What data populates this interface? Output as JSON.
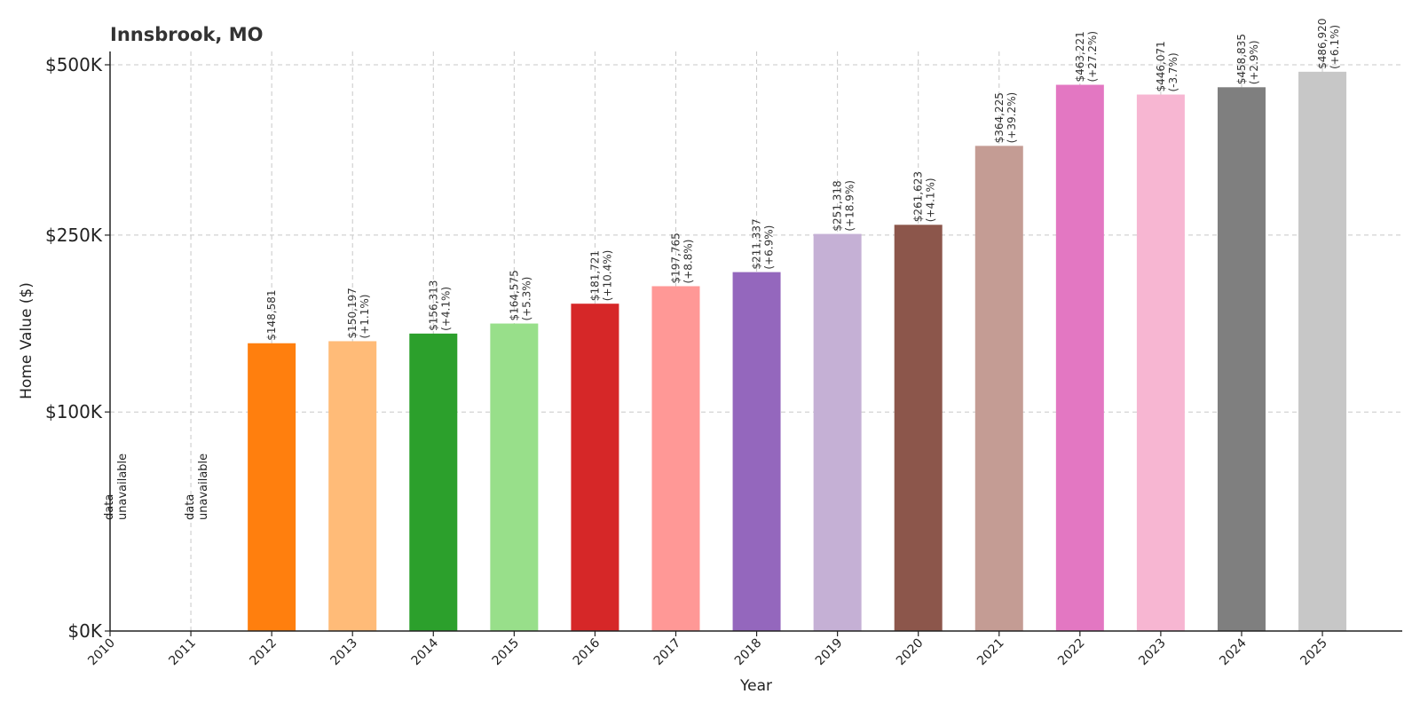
{
  "chart_data": {
    "type": "bar",
    "title": "Innsbrook, MO",
    "xlabel": "Year",
    "ylabel": "Home Value ($)",
    "categories": [
      "2010",
      "2011",
      "2012",
      "2013",
      "2014",
      "2015",
      "2016",
      "2017",
      "2018",
      "2019",
      "2020",
      "2021",
      "2022",
      "2023",
      "2024",
      "2025"
    ],
    "values": [
      null,
      null,
      148581,
      150197,
      156313,
      164575,
      181721,
      197765,
      211337,
      251318,
      261623,
      364225,
      463221,
      446071,
      458835,
      486920
    ],
    "changes": [
      null,
      null,
      null,
      "+1.1%",
      "+4.1%",
      "+5.3%",
      "+10.4%",
      "+8.8%",
      "+6.9%",
      "+18.9%",
      "+4.1%",
      "+39.2%",
      "+27.2%",
      "-3.7%",
      "+2.9%",
      "+6.1%"
    ],
    "value_labels": [
      "",
      "",
      "$148,581",
      "$150,197",
      "$156,313",
      "$164,575",
      "$181,721",
      "$197,765",
      "$211,337",
      "$251,318",
      "$261,623",
      "$364,225",
      "$463,221",
      "$446,071",
      "$458,835",
      "$486,920"
    ],
    "change_labels": [
      "",
      "",
      "",
      "(+1.1%)",
      "(+4.1%)",
      "(+5.3%)",
      "(+10.4%)",
      "(+8.8%)",
      "(+6.9%)",
      "(+18.9%)",
      "(+4.1%)",
      "(+39.2%)",
      "(+27.2%)",
      "(-3.7%)",
      "(+2.9%)",
      "(+6.1%)"
    ],
    "unavailable_label": [
      "data",
      "unavailable"
    ],
    "colors": [
      "#1f77b4",
      "#aec7e8",
      "#ff7f0e",
      "#ffbb78",
      "#2ca02c",
      "#98df8a",
      "#d62728",
      "#ff9896",
      "#9467bd",
      "#c5b0d5",
      "#8c564b",
      "#c49c94",
      "#e377c2",
      "#f7b6d2",
      "#7f7f7f",
      "#c7c7c7"
    ],
    "y_ticks": [
      0,
      100000,
      250000,
      500000
    ],
    "y_tick_labels": [
      "$0K",
      "$100K",
      "$250K",
      "$500K"
    ],
    "y_scale": "symlog",
    "ylim": [
      0,
      500000
    ],
    "grid": true
  }
}
